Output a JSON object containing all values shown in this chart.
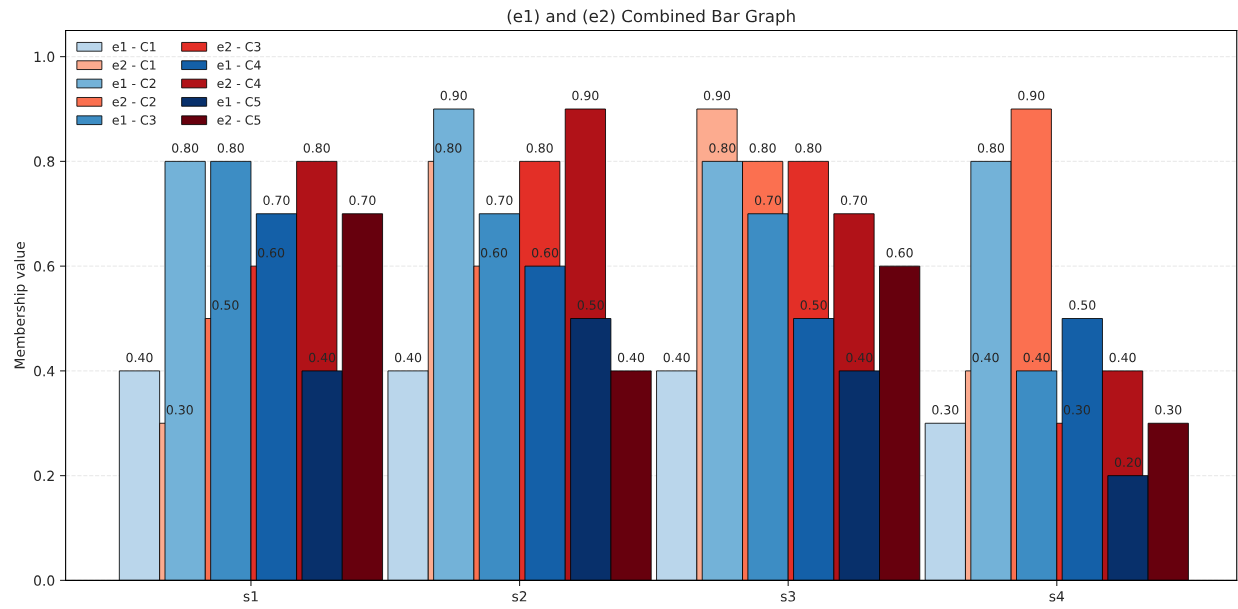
{
  "chart_data": {
    "type": "bar",
    "title": "(e1) and (e2) Combined Bar Graph",
    "ylabel": "Membership value",
    "categories": [
      "s1",
      "s2",
      "s3",
      "s4"
    ],
    "series": [
      {
        "name": "e1 - C1",
        "color": "#bad6eb",
        "values": [
          0.4,
          0.4,
          0.4,
          0.3
        ],
        "value_labels": [
          "0.40",
          "0.40",
          "0.40",
          "0.30"
        ]
      },
      {
        "name": "e2 - C1",
        "color": "#fcab8f",
        "values": [
          0.3,
          0.8,
          0.9,
          0.4
        ],
        "value_labels": [
          "0.30",
          "0.80",
          "0.90",
          "0.40"
        ]
      },
      {
        "name": "e1 - C2",
        "color": "#73b2d8",
        "values": [
          0.8,
          0.9,
          0.8,
          0.8
        ],
        "value_labels": [
          "0.80",
          "0.90",
          "0.80",
          "0.80"
        ]
      },
      {
        "name": "e2 - C2",
        "color": "#fb7050",
        "values": [
          0.5,
          0.6,
          0.8,
          0.9
        ],
        "value_labels": [
          "0.50",
          "0.60",
          "0.80",
          "0.90"
        ]
      },
      {
        "name": "e1 - C3",
        "color": "#3d8dc4",
        "values": [
          0.8,
          0.7,
          0.7,
          0.4
        ],
        "value_labels": [
          "0.80",
          "0.70",
          "0.70",
          "0.40"
        ]
      },
      {
        "name": "e2 - C3",
        "color": "#e32f27",
        "values": [
          0.6,
          0.8,
          0.8,
          0.3
        ],
        "value_labels": [
          "0.60",
          "0.80",
          "0.80",
          "0.30"
        ]
      },
      {
        "name": "e1 - C4",
        "color": "#1460a8",
        "values": [
          0.7,
          0.6,
          0.5,
          0.5
        ],
        "value_labels": [
          "0.70",
          "0.60",
          "0.50",
          "0.50"
        ]
      },
      {
        "name": "e2 - C4",
        "color": "#b11218",
        "values": [
          0.8,
          0.9,
          0.7,
          0.4
        ],
        "value_labels": [
          "0.80",
          "0.90",
          "0.70",
          "0.40"
        ]
      },
      {
        "name": "e1 - C5",
        "color": "#08306b",
        "values": [
          0.4,
          0.5,
          0.4,
          0.2
        ],
        "value_labels": [
          "0.40",
          "0.50",
          "0.40",
          "0.20"
        ]
      },
      {
        "name": "e2 - C5",
        "color": "#67000d",
        "values": [
          0.7,
          0.4,
          0.6,
          0.3
        ],
        "value_labels": [
          "0.70",
          "0.40",
          "0.60",
          "0.30"
        ]
      }
    ],
    "ylim": [
      0,
      1.05
    ],
    "yticks": [
      {
        "value": 0,
        "label": "0.0"
      },
      0.2,
      0.4,
      0.6,
      0.8,
      {
        "value": 1,
        "label": "1.0"
      }
    ],
    "grid": "y",
    "legend": "top left"
  }
}
